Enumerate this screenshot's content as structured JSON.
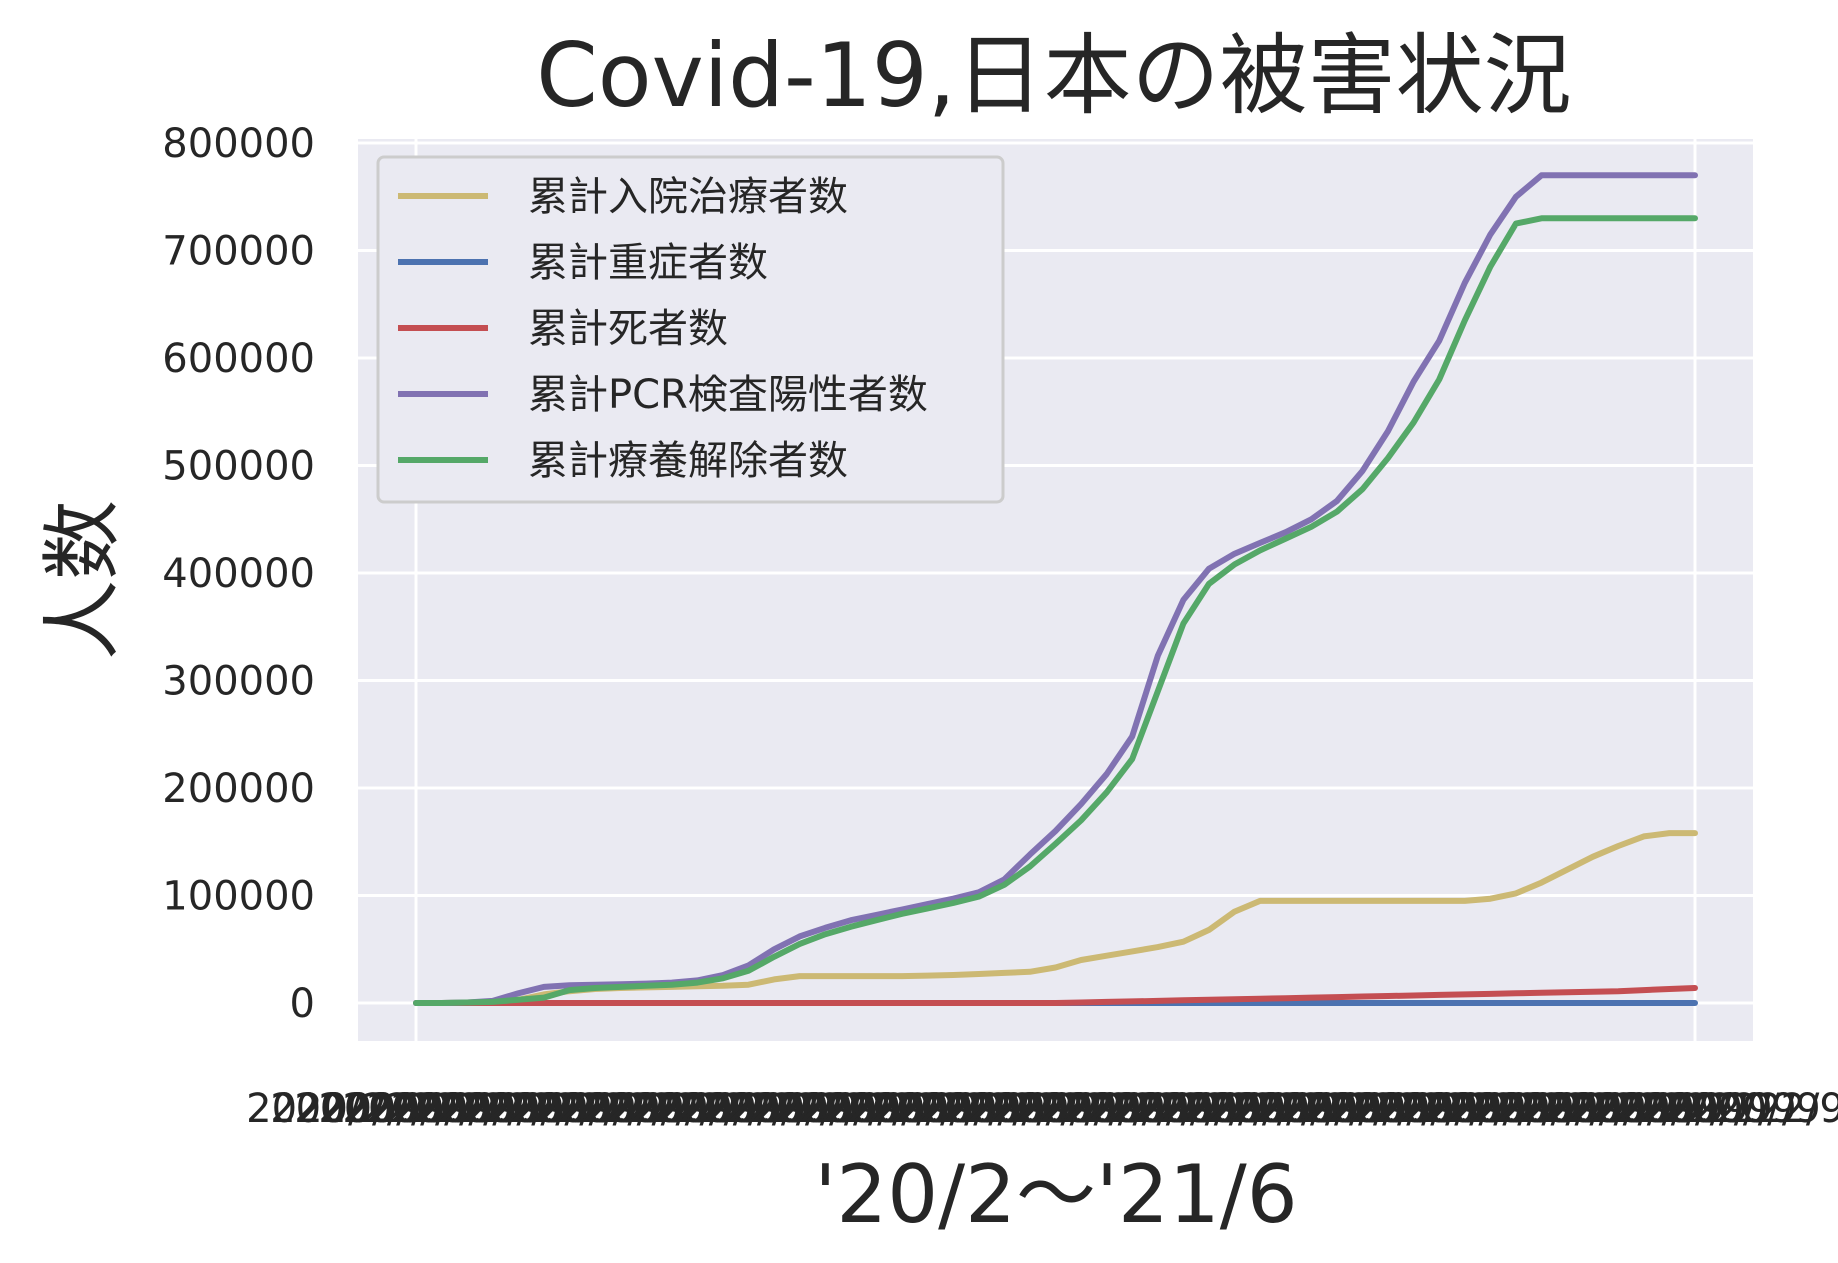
{
  "chart_data": {
    "type": "line",
    "title": "Covid-19,日本の被害状況",
    "xlabel": "'20/2～'21/6",
    "ylabel": "人数",
    "ylim": [
      -65000,
      810000
    ],
    "yticks": [
      0,
      100000,
      200000,
      300000,
      400000,
      500000,
      600000,
      700000,
      800000
    ],
    "grid": true,
    "legend_position": "upper-left",
    "x": [
      0,
      2,
      4,
      6,
      8,
      10,
      12,
      14,
      16,
      18,
      20,
      22,
      24,
      26,
      28,
      30,
      32,
      34,
      36,
      38,
      40,
      42,
      44,
      46,
      48,
      50,
      52,
      54,
      56,
      58,
      60,
      62,
      64,
      66,
      68,
      70,
      72,
      74,
      76,
      78,
      80,
      82,
      84,
      86,
      88,
      90,
      92,
      94,
      96,
      98,
      100
    ],
    "series": [
      {
        "name": "累計入院治療者数",
        "color": "#ccb974",
        "values": [
          0,
          0,
          500,
          1000,
          3000,
          8000,
          11000,
          13000,
          14000,
          14500,
          15000,
          15500,
          16000,
          17000,
          22000,
          25000,
          25000,
          25000,
          25000,
          25000,
          25500,
          26000,
          27000,
          28000,
          29000,
          33000,
          40000,
          44000,
          48000,
          52000,
          57000,
          68000,
          85000,
          95000,
          95000,
          95000,
          95000,
          95000,
          95000,
          95000,
          95000,
          95000,
          97000,
          102000,
          112000,
          124000,
          136000,
          146000,
          155000,
          158000,
          158000
        ]
      },
      {
        "name": "累計重症者数",
        "color": "#4c72b0",
        "values": [
          0,
          0,
          0,
          0,
          0,
          0,
          0,
          0,
          0,
          0,
          0,
          0,
          0,
          0,
          0,
          0,
          0,
          0,
          0,
          0,
          0,
          0,
          0,
          0,
          0,
          0,
          0,
          0,
          0,
          0,
          0,
          0,
          0,
          0,
          0,
          0,
          0,
          0,
          0,
          0,
          0,
          0,
          0,
          0,
          0,
          0,
          0,
          0,
          0,
          0,
          0
        ]
      },
      {
        "name": "累計死者数",
        "color": "#c44e52",
        "values": [
          0,
          0,
          0,
          0,
          0,
          0,
          0,
          0,
          0,
          0,
          0,
          0,
          0,
          0,
          0,
          0,
          0,
          0,
          0,
          0,
          0,
          0,
          0,
          0,
          0,
          0,
          500,
          1000,
          1500,
          2000,
          2500,
          3000,
          3500,
          4000,
          4500,
          5000,
          5500,
          6000,
          6500,
          7000,
          7500,
          8000,
          8500,
          9000,
          9500,
          10000,
          10500,
          11000,
          12000,
          13000,
          14000
        ]
      },
      {
        "name": "累計PCR検査陽性者数",
        "color": "#8172b2",
        "values": [
          0,
          0,
          500,
          2000,
          9000,
          15000,
          16500,
          17000,
          17500,
          18000,
          19000,
          21000,
          26000,
          35000,
          50000,
          62000,
          70000,
          77000,
          82000,
          87000,
          92000,
          97000,
          103000,
          115000,
          138000,
          160000,
          185000,
          213000,
          248000,
          323000,
          375000,
          404000,
          418000,
          428000,
          438000,
          450000,
          467000,
          495000,
          532000,
          578000,
          616000,
          670000,
          715000,
          750000,
          770000,
          770000,
          770000,
          770000,
          770000,
          770000,
          770000
        ]
      },
      {
        "name": "累計療養解除者数",
        "color": "#55a868",
        "values": [
          0,
          0,
          500,
          1000,
          3000,
          5000,
          12000,
          14000,
          15000,
          16000,
          17000,
          19000,
          23000,
          30000,
          43000,
          55000,
          64000,
          71000,
          77000,
          83000,
          88000,
          93000,
          99000,
          110000,
          127000,
          148000,
          170000,
          196000,
          227000,
          290000,
          353000,
          390000,
          408000,
          421000,
          432000,
          443000,
          457000,
          478000,
          507000,
          540000,
          580000,
          635000,
          685000,
          725000,
          730000,
          730000,
          730000,
          730000,
          730000,
          730000,
          730000
        ]
      }
    ]
  }
}
